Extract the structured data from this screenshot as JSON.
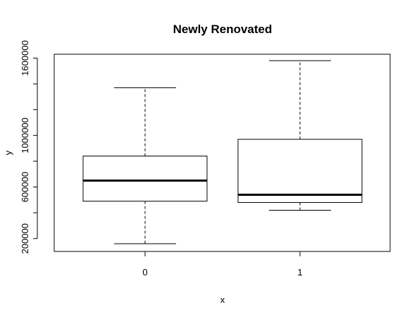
{
  "chart_data": {
    "type": "boxplot",
    "title": "Newly Renovated",
    "xlabel": "x",
    "ylabel": "y",
    "categories": [
      "0",
      "1"
    ],
    "boxes": [
      {
        "category": "0",
        "whisker_low": 160000,
        "q1": 490000,
        "median": 650000,
        "q3": 840000,
        "whisker_high": 1370000
      },
      {
        "category": "1",
        "whisker_low": 420000,
        "q1": 480000,
        "median": 540000,
        "q3": 970000,
        "whisker_high": 1580000
      }
    ],
    "y_ticks": [
      200000,
      600000,
      1000000,
      1600000
    ],
    "y_tick_labels": [
      "200000",
      "600000",
      "1000000",
      "1600000"
    ],
    "y_minor_ticks": [
      400000,
      800000,
      1200000,
      1400000
    ],
    "ylim": [
      100000,
      1630000
    ],
    "grid": false
  }
}
